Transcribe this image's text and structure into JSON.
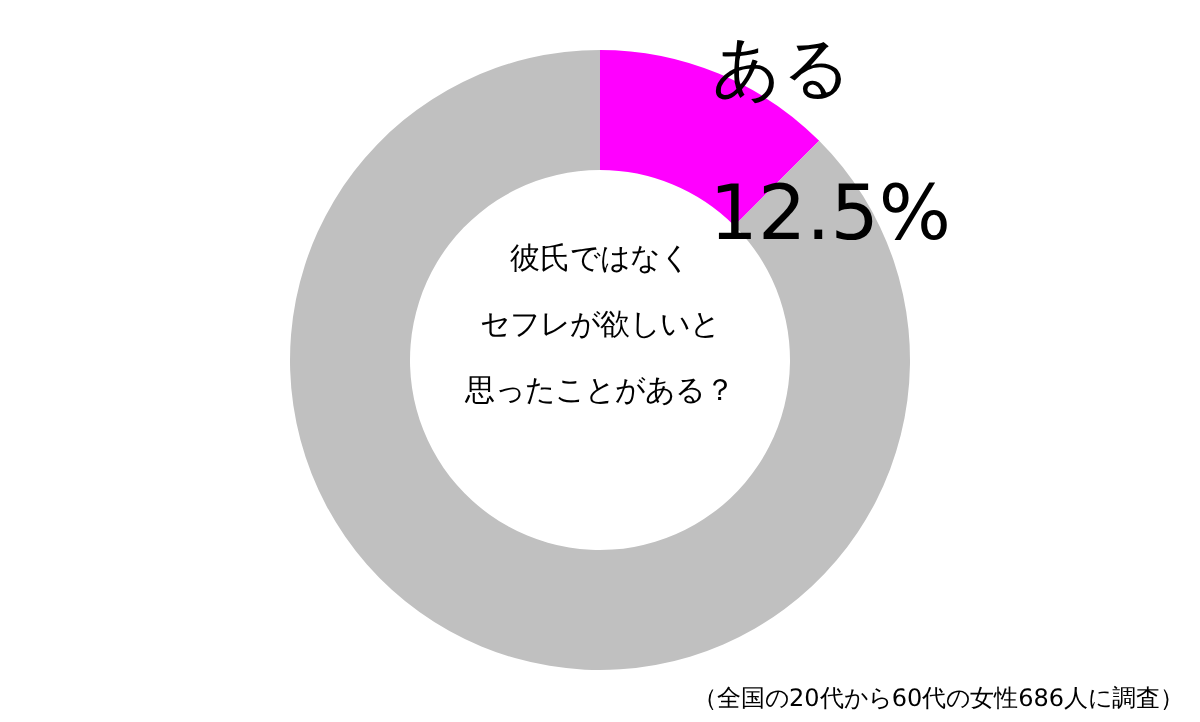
{
  "chart_data": {
    "type": "donut",
    "categories": [
      "ある",
      null
    ],
    "values": [
      12.5,
      87.5
    ],
    "colors": [
      "#ff00ff",
      "#c0c0c0"
    ],
    "value_labels": [
      "12.5%",
      null
    ],
    "annotations": [
      "彼氏ではなく",
      "セフレが欲しいと",
      "思ったことがある？",
      "（全国の20代から60代の女性686人に調査）"
    ]
  }
}
